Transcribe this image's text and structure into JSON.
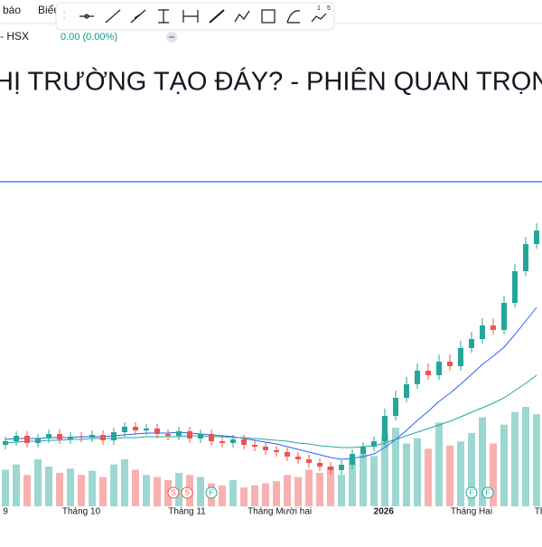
{
  "header": {
    "menu": [
      "báo",
      "Biểu"
    ],
    "symbol": "- HSX",
    "change": "0.00 (0.00%)",
    "toolbar_badge": [
      "1",
      "5"
    ]
  },
  "chart_data": {
    "type": "candlestick",
    "title": "HỊ TRƯỜNG TẠO ĐÁY? - PHIÊN QUAN TRỌNG",
    "up_color": "#26a69a",
    "down_color": "#ef5350",
    "ylim": [
      0,
      360
    ],
    "price_line": 359,
    "price_line_color": "#2962ff",
    "open": [
      68,
      72,
      78,
      70,
      75,
      80,
      74,
      77,
      76,
      79,
      73,
      82,
      88,
      84,
      86,
      80,
      78,
      83,
      75,
      80,
      72,
      70,
      74,
      68,
      66,
      62,
      60,
      55,
      52,
      48,
      44,
      40,
      46,
      58,
      66,
      72,
      100,
      120,
      135,
      150,
      145,
      160,
      155,
      175,
      185,
      200,
      195,
      225,
      260,
      290
    ],
    "high": [
      77,
      83,
      83,
      80,
      85,
      85,
      82,
      82,
      84,
      84,
      87,
      93,
      93,
      91,
      91,
      85,
      88,
      88,
      85,
      85,
      77,
      79,
      79,
      73,
      71,
      67,
      65,
      60,
      57,
      53,
      49,
      51,
      63,
      71,
      77,
      108,
      128,
      143,
      158,
      158,
      168,
      168,
      183,
      193,
      208,
      208,
      233,
      268,
      298,
      313
    ],
    "low": [
      63,
      67,
      65,
      65,
      70,
      69,
      69,
      71,
      71,
      68,
      68,
      77,
      79,
      79,
      75,
      73,
      73,
      70,
      70,
      67,
      65,
      65,
      63,
      61,
      57,
      55,
      50,
      47,
      43,
      39,
      35,
      35,
      41,
      53,
      61,
      67,
      95,
      115,
      130,
      140,
      140,
      150,
      150,
      170,
      180,
      190,
      190,
      220,
      255,
      285
    ],
    "close": [
      72,
      78,
      70,
      75,
      80,
      74,
      77,
      76,
      79,
      73,
      82,
      88,
      84,
      86,
      80,
      78,
      83,
      75,
      80,
      72,
      70,
      74,
      68,
      66,
      62,
      60,
      55,
      52,
      48,
      44,
      40,
      46,
      58,
      66,
      72,
      100,
      120,
      135,
      150,
      145,
      160,
      155,
      175,
      185,
      200,
      195,
      225,
      260,
      290,
      305
    ],
    "volume": [
      35,
      40,
      30,
      45,
      38,
      32,
      36,
      30,
      34,
      28,
      40,
      45,
      35,
      30,
      28,
      25,
      32,
      30,
      28,
      22,
      20,
      25,
      18,
      20,
      22,
      24,
      30,
      28,
      35,
      32,
      38,
      30,
      45,
      50,
      48,
      70,
      75,
      60,
      65,
      55,
      80,
      58,
      62,
      70,
      85,
      60,
      78,
      90,
      95,
      88
    ],
    "series": [
      {
        "color": "#2962ff",
        "values": [
          74,
          75,
          75,
          75,
          76,
          76,
          76,
          77,
          77,
          77,
          78,
          79,
          80,
          81,
          81,
          81,
          82,
          81,
          80,
          79,
          78,
          77,
          75,
          73,
          71,
          69,
          66,
          63,
          60,
          57,
          54,
          52,
          53,
          55,
          58,
          65,
          74,
          84,
          95,
          105,
          116,
          125,
          135,
          146,
          157,
          166,
          176,
          190,
          205,
          220
        ]
      },
      {
        "color": "#26a69a",
        "values": [
          70,
          71,
          72,
          72,
          73,
          73,
          74,
          74,
          75,
          75,
          75,
          76,
          76,
          77,
          77,
          77,
          77,
          78,
          78,
          77,
          77,
          76,
          76,
          75,
          74,
          73,
          72,
          70,
          69,
          67,
          66,
          65,
          65,
          66,
          67,
          70,
          74,
          78,
          82,
          86,
          90,
          94,
          99,
          104,
          109,
          114,
          120,
          128,
          136,
          145
        ]
      }
    ],
    "xticks": [
      {
        "value": 0,
        "label": "9"
      },
      {
        "value": 7,
        "label": "Tháng 10"
      },
      {
        "value": 16.75,
        "label": "Tháng 11"
      },
      {
        "value": 25.3,
        "label": "Tháng Mười hai"
      },
      {
        "value": 34.9,
        "label": "2026",
        "bold": true
      },
      {
        "value": 43,
        "label": "Tháng Hai"
      },
      {
        "value": 49.3,
        "label": "Th"
      }
    ],
    "events": [
      {
        "index": 15.5,
        "label": "S",
        "color": "#ef5350"
      },
      {
        "index": 16.75,
        "label": "S",
        "color": "#ef5350"
      },
      {
        "index": 19,
        "label": "F",
        "color": "#26a69a"
      },
      {
        "index": 43,
        "label": "F",
        "color": "#26a69a"
      },
      {
        "index": 44.5,
        "label": "F",
        "color": "#26a69a"
      }
    ]
  }
}
